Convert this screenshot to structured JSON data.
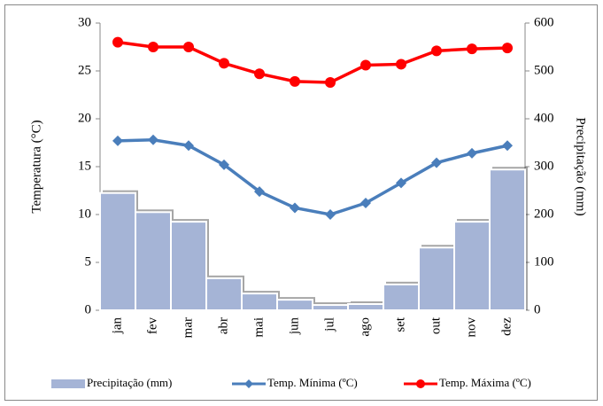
{
  "chart_data": {
    "type": "combo",
    "categories": [
      "jan",
      "fev",
      "mar",
      "abr",
      "mai",
      "jun",
      "jul",
      "ago",
      "set",
      "out",
      "nov",
      "dez"
    ],
    "y_label": "Temperatura (°C)",
    "y2_label": "Precipitação (mm)",
    "ylim": [
      0,
      30
    ],
    "yticks": [
      0,
      5,
      10,
      15,
      20,
      25,
      30
    ],
    "y2lim": [
      0,
      600
    ],
    "y2ticks": [
      0,
      100,
      200,
      300,
      400,
      500,
      600
    ],
    "legend": "bottom",
    "series": [
      {
        "name": "Precipitação (mm)",
        "type": "bar",
        "axis": "y2",
        "color": "#a5b4d6",
        "values": [
          245,
          205,
          185,
          67,
          35,
          22,
          11,
          13,
          54,
          131,
          185,
          294
        ]
      },
      {
        "name": "Temp. Mínima (ºC)",
        "type": "line",
        "marker": "diamond",
        "color": "#4a7ebb",
        "values": [
          17.7,
          17.8,
          17.2,
          15.2,
          12.4,
          10.7,
          10.0,
          11.2,
          13.3,
          15.4,
          16.4,
          17.2
        ]
      },
      {
        "name": "Temp. Máxima (ºC)",
        "type": "line",
        "marker": "circle",
        "color": "#ff0000",
        "values": [
          28.0,
          27.5,
          27.5,
          25.8,
          24.7,
          23.9,
          23.8,
          25.6,
          25.7,
          27.1,
          27.3,
          27.4
        ]
      }
    ]
  }
}
